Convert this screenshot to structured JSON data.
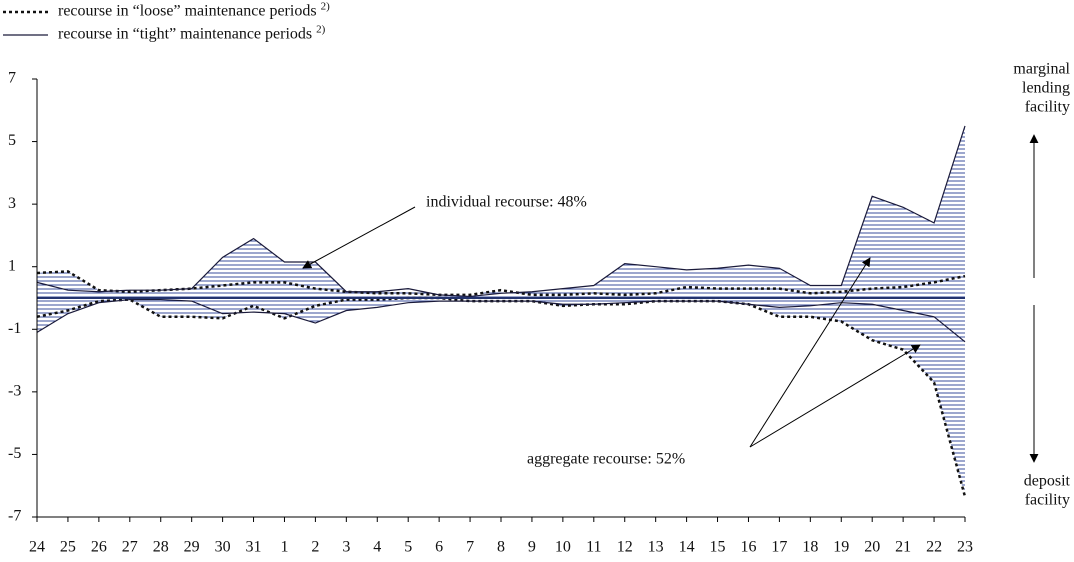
{
  "chart_data": {
    "type": "line",
    "categories": [
      "24",
      "25",
      "26",
      "27",
      "28",
      "29",
      "30",
      "31",
      "1",
      "2",
      "3",
      "4",
      "5",
      "6",
      "7",
      "8",
      "9",
      "10",
      "11",
      "12",
      "13",
      "14",
      "15",
      "16",
      "17",
      "18",
      "19",
      "20",
      "21",
      "22",
      "23"
    ],
    "ylim": [
      -7,
      7
    ],
    "yticks": [
      -7,
      -5,
      -3,
      -1,
      1,
      3,
      5,
      7
    ],
    "series": [
      {
        "name": "recourse in “loose” maintenance periods",
        "note": "2)",
        "dash": true,
        "color": "#111111",
        "values": [
          0.8,
          0.85,
          0.25,
          0.2,
          0.25,
          0.3,
          0.4,
          0.5,
          0.5,
          0.3,
          0.2,
          0.15,
          0.15,
          0.1,
          0.1,
          0.25,
          0.1,
          0.1,
          0.15,
          0.1,
          0.15,
          0.35,
          0.3,
          0.3,
          0.3,
          0.15,
          0.2,
          0.3,
          0.35,
          0.5,
          0.7
        ],
        "lower": [
          -0.6,
          -0.4,
          -0.1,
          -0.05,
          -0.6,
          -0.6,
          -0.65,
          -0.25,
          -0.65,
          -0.25,
          -0.05,
          -0.05,
          0,
          0,
          -0.1,
          -0.1,
          -0.1,
          -0.25,
          -0.2,
          -0.2,
          -0.1,
          -0.1,
          -0.1,
          -0.2,
          -0.6,
          -0.6,
          -0.75,
          -1.35,
          -1.65,
          -2.7,
          -6.35
        ]
      },
      {
        "name": "recourse in “tight” maintenance periods",
        "note": "2)",
        "dash": false,
        "color": "#1a1a3a",
        "values": [
          0.5,
          0.25,
          0.2,
          0.25,
          0.25,
          0.3,
          1.3,
          1.9,
          1.15,
          1.15,
          0.2,
          0.2,
          0.3,
          0.1,
          0.05,
          0.15,
          0.2,
          0.3,
          0.4,
          1.1,
          1.0,
          0.9,
          0.95,
          1.05,
          0.95,
          0.4,
          0.4,
          3.25,
          2.9,
          2.4,
          5.5
        ],
        "lower": [
          -1.1,
          -0.5,
          -0.15,
          -0.05,
          -0.05,
          -0.1,
          -0.5,
          -0.45,
          -0.5,
          -0.8,
          -0.4,
          -0.3,
          -0.15,
          -0.1,
          -0.1,
          -0.1,
          -0.1,
          -0.2,
          -0.2,
          -0.15,
          -0.1,
          -0.1,
          -0.1,
          -0.2,
          -0.3,
          -0.25,
          -0.15,
          -0.2,
          -0.4,
          -0.6,
          -1.4
        ]
      }
    ],
    "hatch_color": "#3b4f9c",
    "annotations": {
      "individual": "individual recourse: 48%",
      "aggregate": "aggregate recourse: 52%"
    },
    "right_labels": {
      "top": [
        "marginal",
        "lending",
        "facility"
      ],
      "bottom": [
        "deposit",
        "facility"
      ]
    }
  }
}
